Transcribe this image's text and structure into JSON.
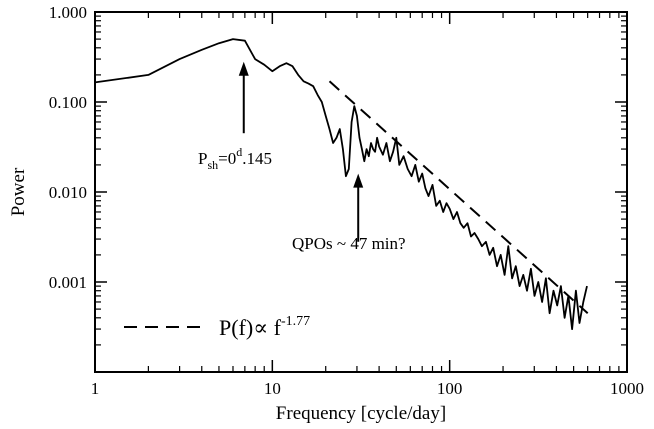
{
  "chart_data": {
    "type": "line",
    "title": "",
    "xlabel": "Frequency [cycle/day]",
    "ylabel": "Power",
    "x_scale": "log",
    "y_scale": "log",
    "xlim": [
      1,
      1000
    ],
    "ylim": [
      0.0001,
      1.0
    ],
    "x_ticks": [
      {
        "value": 1,
        "label": "1"
      },
      {
        "value": 10,
        "label": "10"
      },
      {
        "value": 100,
        "label": "100"
      },
      {
        "value": 1000,
        "label": "1000"
      }
    ],
    "y_ticks": [
      {
        "value": 1.0,
        "label": "1.000"
      },
      {
        "value": 0.1,
        "label": "0.100"
      },
      {
        "value": 0.01,
        "label": "0.010"
      },
      {
        "value": 0.001,
        "label": "0.001"
      }
    ],
    "grid": false,
    "series": [
      {
        "style": "solid",
        "color": "#000000",
        "x": [
          1,
          2,
          3,
          4,
          5,
          6,
          7,
          8,
          9,
          10,
          11,
          12,
          13,
          14,
          15,
          16,
          17,
          18,
          19,
          20,
          21,
          22,
          23,
          24,
          25,
          26,
          27,
          28,
          29,
          30,
          31,
          32,
          33,
          34,
          35,
          36,
          37,
          38,
          39,
          40,
          42,
          44,
          46,
          48,
          50,
          52,
          55,
          58,
          61,
          64,
          67,
          70,
          73,
          76,
          80,
          84,
          88,
          92,
          96,
          100,
          105,
          110,
          115,
          120,
          126,
          132,
          138,
          145,
          152,
          160,
          168,
          176,
          185,
          194,
          204,
          214,
          225,
          236,
          248,
          260,
          273,
          287,
          301,
          316,
          332,
          349,
          366,
          385,
          404,
          424,
          445,
          467,
          490,
          515,
          540,
          567,
          595
        ],
        "y": [
          0.165,
          0.2,
          0.3,
          0.38,
          0.45,
          0.5,
          0.48,
          0.3,
          0.26,
          0.22,
          0.25,
          0.27,
          0.25,
          0.2,
          0.17,
          0.16,
          0.15,
          0.12,
          0.1,
          0.07,
          0.05,
          0.035,
          0.04,
          0.05,
          0.03,
          0.015,
          0.018,
          0.06,
          0.09,
          0.07,
          0.04,
          0.03,
          0.022,
          0.03,
          0.025,
          0.035,
          0.03,
          0.028,
          0.04,
          0.032,
          0.026,
          0.035,
          0.022,
          0.028,
          0.04,
          0.02,
          0.025,
          0.018,
          0.015,
          0.02,
          0.013,
          0.016,
          0.011,
          0.009,
          0.012,
          0.007,
          0.008,
          0.006,
          0.0075,
          0.0065,
          0.005,
          0.006,
          0.0045,
          0.004,
          0.0045,
          0.0032,
          0.0035,
          0.003,
          0.0025,
          0.0028,
          0.002,
          0.0024,
          0.0015,
          0.002,
          0.0012,
          0.0025,
          0.0011,
          0.0015,
          0.0009,
          0.0012,
          0.0008,
          0.0014,
          0.0007,
          0.001,
          0.0006,
          0.0011,
          0.00045,
          0.0008,
          0.00055,
          0.0009,
          0.0004,
          0.0007,
          0.0003,
          0.0008,
          0.00035,
          0.0006,
          0.0009
        ]
      },
      {
        "name": "P(f)∝ f",
        "name_superscript": "-1.77",
        "style": "dashed",
        "color": "#000000",
        "x": [
          21,
          600
        ],
        "y": [
          0.17,
          0.00045
        ]
      }
    ],
    "annotations": [
      {
        "id": "psh",
        "label_main": "P",
        "label_sub": "sh",
        "label_mid": "=0",
        "label_sup": "d",
        "label_tail": ".145",
        "arrow_tip_x": 6.9,
        "arrow_tip_y": 0.28,
        "arrow_tail_y": 0.045
      },
      {
        "id": "qpo",
        "label": "QPOs ~ 47 min?",
        "arrow_tip_x": 30.5,
        "arrow_tip_y": 0.016,
        "arrow_tail_y": 0.0028
      }
    ],
    "legend": {
      "placement": "bottom-left"
    }
  }
}
